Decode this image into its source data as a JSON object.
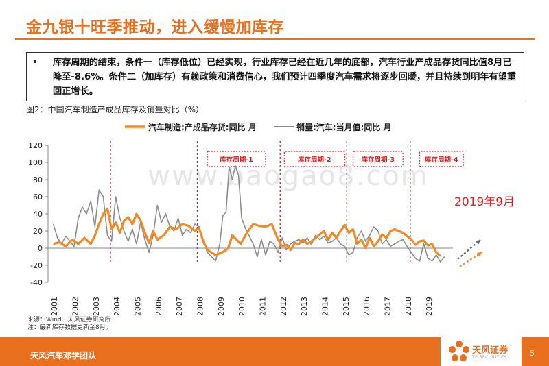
{
  "page": {
    "title": "金九银十旺季推动，进入缓慢加库存",
    "bullet_symbol": "•",
    "bullet": "库存周期的结束，条件一（库存低位）已经实现，行业库存已经在近几年的底部，汽车行业产成品存货同比值8月已降至-8.6%。条件二（加库存）有赖政策和消费信心，我们预计四季度汽车需求将逐步回暖，并且持续到明年有望重回正增长。",
    "figure_caption": "图2：中国汽车制造产成品库存及销量对比（%）",
    "source_line1": "来源：Wind、天风证券研究所",
    "source_line2": "注：最新库存数据更新至8月。",
    "footer_left": "天风汽车邓学团队",
    "logo_text": "天风证券",
    "logo_sub": "TF SECURITIES",
    "page_number": "5",
    "watermark": "www.baogao8.com"
  },
  "colors": {
    "accent": "#e8701e",
    "inventory": "#f08a26",
    "sales": "#8c8c8c",
    "marker": "#d62020"
  },
  "chart_data": {
    "type": "line",
    "ylim": [
      -40,
      120
    ],
    "yticks": [
      "120",
      "100",
      "80",
      "60",
      "40",
      "20",
      "0",
      "-20",
      "-40"
    ],
    "xticks": [
      "2001",
      "2002",
      "2003",
      "2004",
      "2005",
      "2006",
      "2007",
      "2008",
      "2009",
      "2010",
      "2011",
      "2012",
      "2013",
      "2014",
      "2015",
      "2016",
      "2017",
      "2018",
      "2019"
    ],
    "legend": [
      "汽车制造:产成品存货:同比 月",
      "销量:汽车:当月值:同比 月"
    ],
    "cycle_dividers": [
      2003.75,
      2007.92,
      2011.9,
      2015.1,
      2018.15
    ],
    "cycles": [
      {
        "label": "库存周期-1",
        "range": [
          2008.4,
          2011.2
        ]
      },
      {
        "label": "库存周期-2",
        "range": [
          2012.1,
          2015.0
        ]
      },
      {
        "label": "库存周期-3",
        "range": [
          2015.4,
          2017.8
        ]
      },
      {
        "label": "库存周期-4",
        "range": [
          2018.6,
          2020.7
        ]
      }
    ],
    "annotation": "2019年9月",
    "series": [
      {
        "name": "汽车制造:产成品存货:同比 月",
        "x": [
          2001.0,
          2001.3,
          2001.6,
          2001.9,
          2002.2,
          2002.5,
          2002.8,
          2003.0,
          2003.2,
          2003.4,
          2003.6,
          2003.8,
          2004.0,
          2004.2,
          2004.4,
          2004.6,
          2004.8,
          2005.0,
          2005.2,
          2005.4,
          2005.6,
          2005.8,
          2006.0,
          2006.3,
          2006.6,
          2006.9,
          2007.2,
          2007.5,
          2007.8,
          2008.0,
          2008.2,
          2008.4,
          2008.6,
          2008.8,
          2009.0,
          2009.2,
          2009.4,
          2009.6,
          2009.8,
          2010.0,
          2010.3,
          2010.6,
          2010.9,
          2011.2,
          2011.5,
          2011.8,
          2012.0,
          2012.2,
          2012.4,
          2012.6,
          2012.8,
          2013.0,
          2013.2,
          2013.4,
          2013.6,
          2013.8,
          2014.0,
          2014.2,
          2014.4,
          2014.6,
          2014.8,
          2015.0,
          2015.2,
          2015.4,
          2015.6,
          2015.8,
          2016.0,
          2016.2,
          2016.4,
          2016.6,
          2016.8,
          2017.0,
          2017.2,
          2017.4,
          2017.6,
          2017.8,
          2018.0,
          2018.2,
          2018.4,
          2018.6,
          2018.8,
          2019.0,
          2019.2,
          2019.4,
          2019.6
        ],
        "values": [
          5,
          7,
          2,
          10,
          5,
          12,
          5,
          15,
          28,
          40,
          46,
          22,
          30,
          18,
          32,
          36,
          28,
          40,
          32,
          18,
          6,
          20,
          10,
          15,
          25,
          22,
          28,
          26,
          20,
          24,
          8,
          -2,
          -5,
          -8,
          -6,
          -4,
          0,
          15,
          10,
          5,
          18,
          28,
          26,
          25,
          28,
          10,
          2,
          4,
          -2,
          6,
          5,
          10,
          5,
          8,
          12,
          16,
          20,
          10,
          18,
          12,
          20,
          27,
          18,
          22,
          5,
          10,
          0,
          12,
          2,
          8,
          16,
          12,
          20,
          22,
          20,
          18,
          14,
          10,
          4,
          8,
          9,
          3,
          5,
          -5,
          -9
        ]
      },
      {
        "name": "销量:汽车:当月值:同比 月",
        "x": [
          2001.0,
          2001.2,
          2001.4,
          2001.6,
          2001.8,
          2002.0,
          2002.2,
          2002.4,
          2002.6,
          2002.8,
          2003.0,
          2003.2,
          2003.4,
          2003.6,
          2003.8,
          2004.0,
          2004.2,
          2004.4,
          2004.6,
          2004.8,
          2005.0,
          2005.2,
          2005.4,
          2005.6,
          2005.8,
          2006.0,
          2006.2,
          2006.4,
          2006.6,
          2006.8,
          2007.0,
          2007.2,
          2007.4,
          2007.6,
          2007.8,
          2008.0,
          2008.2,
          2008.4,
          2008.6,
          2008.8,
          2009.0,
          2009.15,
          2009.3,
          2009.45,
          2009.6,
          2009.75,
          2009.9,
          2010.05,
          2010.2,
          2010.4,
          2010.6,
          2010.8,
          2011.0,
          2011.2,
          2011.4,
          2011.6,
          2011.8,
          2012.0,
          2012.2,
          2012.4,
          2012.6,
          2012.8,
          2013.0,
          2013.2,
          2013.4,
          2013.6,
          2013.8,
          2014.0,
          2014.2,
          2014.4,
          2014.6,
          2014.8,
          2015.0,
          2015.2,
          2015.4,
          2015.6,
          2015.8,
          2016.0,
          2016.2,
          2016.4,
          2016.6,
          2016.8,
          2017.0,
          2017.2,
          2017.4,
          2017.6,
          2017.8,
          2018.0,
          2018.2,
          2018.4,
          2018.6,
          2018.8,
          2019.0,
          2019.2,
          2019.4,
          2019.6,
          2019.8
        ],
        "values": [
          28,
          12,
          5,
          14,
          8,
          2,
          35,
          48,
          40,
          55,
          25,
          68,
          60,
          15,
          8,
          60,
          35,
          20,
          8,
          22,
          5,
          30,
          10,
          -5,
          15,
          50,
          30,
          40,
          25,
          20,
          35,
          15,
          22,
          18,
          28,
          25,
          10,
          -5,
          -10,
          -15,
          5,
          38,
          42,
          95,
          80,
          96,
          85,
          35,
          25,
          15,
          5,
          -10,
          10,
          -8,
          8,
          5,
          -5,
          12,
          -2,
          5,
          8,
          10,
          6,
          12,
          4,
          15,
          10,
          14,
          6,
          8,
          12,
          5,
          2,
          -8,
          -5,
          12,
          20,
          8,
          15,
          25,
          20,
          5,
          10,
          2,
          5,
          8,
          10,
          2,
          -5,
          -12,
          -15,
          5,
          -12,
          -15,
          -8,
          -16,
          -10
        ]
      }
    ]
  }
}
